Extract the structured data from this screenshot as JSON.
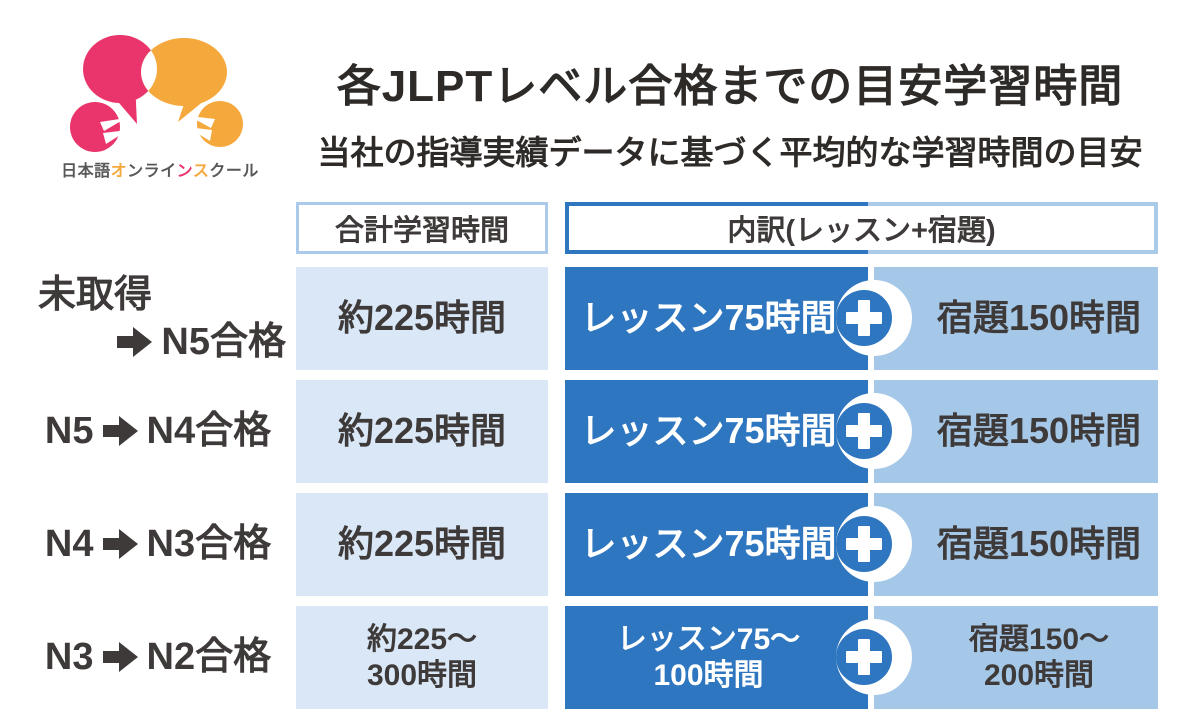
{
  "logo": {
    "text_parts": [
      {
        "text": "日本語",
        "color": "gray"
      },
      {
        "text": "オ",
        "color": "orange"
      },
      {
        "text": "ン",
        "color": "gray"
      },
      {
        "text": "ライ",
        "color": "gray"
      },
      {
        "text": "ン",
        "color": "pink"
      },
      {
        "text": "ス",
        "color": "orange"
      },
      {
        "text": "クール",
        "color": "gray"
      }
    ]
  },
  "header": {
    "title": "各JLPTレベル合格までの目安学習時間",
    "subtitle": "当社の指導実績データに基づく平均的な学習時間の目安"
  },
  "table": {
    "column_headers": {
      "total": "合計学習時間",
      "breakdown": "内訳(レッスン+宿題)"
    },
    "rows": [
      {
        "label_from": "未取得",
        "label_to": "N5合格",
        "stacked": true,
        "total": [
          "約225時間"
        ],
        "lesson": [
          "レッスン75時間"
        ],
        "homework": [
          "宿題150時間"
        ]
      },
      {
        "label_from": "N5",
        "label_to": "N4合格",
        "stacked": false,
        "total": [
          "約225時間"
        ],
        "lesson": [
          "レッスン75時間"
        ],
        "homework": [
          "宿題150時間"
        ]
      },
      {
        "label_from": "N4",
        "label_to": "N3合格",
        "stacked": false,
        "total": [
          "約225時間"
        ],
        "lesson": [
          "レッスン75時間"
        ],
        "homework": [
          "宿題150時間"
        ]
      },
      {
        "label_from": "N3",
        "label_to": "N2合格",
        "stacked": false,
        "total": [
          "約225〜",
          "300時間"
        ],
        "lesson": [
          "レッスン75〜",
          "100時間"
        ],
        "homework": [
          "宿題150〜",
          "200時間"
        ]
      }
    ]
  },
  "colors": {
    "dark_blue": "#2e76bf",
    "light_blue": "#a6c8e8",
    "pale_blue": "#d9e7f6",
    "header_border_light": "#abc9e9",
    "text_dark": "#3e3a39",
    "logo_pink": "#e9356b",
    "logo_orange": "#f5a93c"
  },
  "chart_data": {
    "type": "table",
    "title": "各JLPTレベル合格までの目安学習時間",
    "subtitle": "当社の指導実績データに基づく平均的な学習時間の目安",
    "columns": [
      "合計学習時間",
      "内訳(レッスン+宿題)"
    ],
    "categories": [
      "未取得→N5合格",
      "N5→N4合格",
      "N4→N3合格",
      "N3→N2合格"
    ],
    "series": [
      {
        "name": "合計学習時間",
        "values": [
          "約225時間",
          "約225時間",
          "約225時間",
          "約225〜300時間"
        ]
      },
      {
        "name": "レッスン",
        "values": [
          "レッスン75時間",
          "レッスン75時間",
          "レッスン75時間",
          "レッスン75〜100時間"
        ]
      },
      {
        "name": "宿題",
        "values": [
          "宿題150時間",
          "宿題150時間",
          "宿題150時間",
          "宿題150〜200時間"
        ]
      }
    ],
    "total_hours_numeric": [
      225,
      225,
      225,
      [
        225,
        300
      ]
    ],
    "lesson_hours_numeric": [
      75,
      75,
      75,
      [
        75,
        100
      ]
    ],
    "homework_hours_numeric": [
      150,
      150,
      150,
      [
        150,
        200
      ]
    ]
  }
}
